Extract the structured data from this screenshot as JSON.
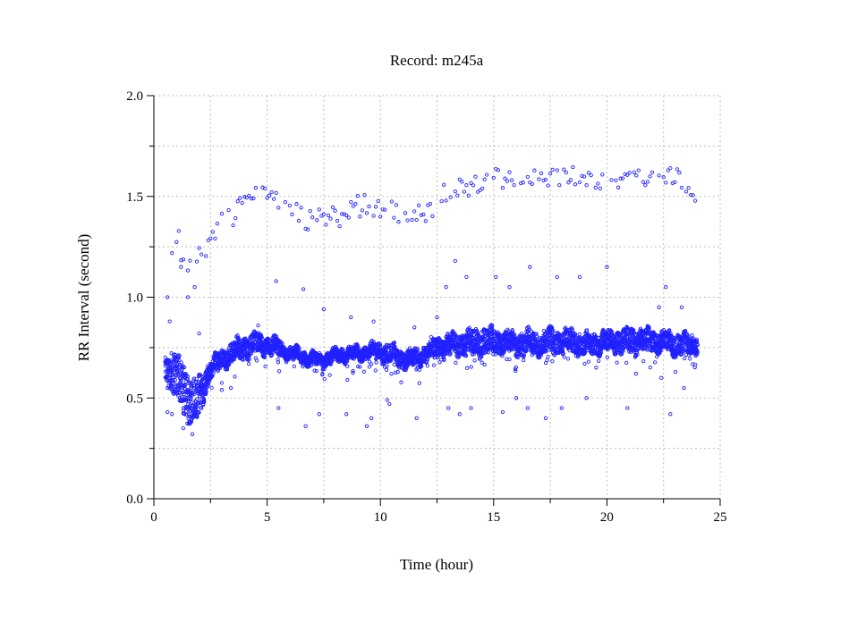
{
  "chart_data": {
    "type": "scatter",
    "title": "Record:  m245a",
    "xlabel": "Time (hour)",
    "ylabel": "RR Interval (second)",
    "xlim": [
      0,
      25
    ],
    "ylim": [
      0.0,
      2.0
    ],
    "x_ticks": [
      "0",
      "5",
      "10",
      "15",
      "20",
      "25"
    ],
    "x_tick_values": [
      0,
      5,
      10,
      15,
      20,
      25
    ],
    "x_minor_step": 2.5,
    "y_ticks": [
      "0.0",
      "0.5",
      "1.0",
      "1.5",
      "2.0"
    ],
    "y_tick_values": [
      0,
      0.5,
      1.0,
      1.5,
      2.0
    ],
    "y_minor_step": 0.25,
    "grid": true,
    "legend": "none",
    "marker": "open-circle",
    "color": "#2020ff",
    "main_band": {
      "hours": [
        0.5,
        1,
        1.5,
        2,
        2.5,
        3,
        3.5,
        4,
        4.5,
        5,
        5.5,
        6,
        6.5,
        7,
        7.5,
        8,
        8.5,
        9,
        9.5,
        10,
        10.5,
        11,
        11.5,
        12,
        12.5,
        13,
        13.5,
        14,
        14.5,
        15,
        15.5,
        16,
        16.5,
        17,
        17.5,
        18,
        18.5,
        19,
        19.5,
        20,
        20.5,
        21,
        21.5,
        22,
        22.5,
        23,
        23.5,
        24
      ],
      "rr_mean": [
        0.65,
        0.62,
        0.5,
        0.5,
        0.65,
        0.69,
        0.73,
        0.75,
        0.77,
        0.76,
        0.75,
        0.72,
        0.71,
        0.69,
        0.69,
        0.71,
        0.72,
        0.72,
        0.73,
        0.73,
        0.72,
        0.69,
        0.7,
        0.72,
        0.75,
        0.76,
        0.77,
        0.77,
        0.78,
        0.78,
        0.78,
        0.77,
        0.77,
        0.77,
        0.78,
        0.78,
        0.78,
        0.77,
        0.77,
        0.78,
        0.78,
        0.78,
        0.79,
        0.79,
        0.78,
        0.77,
        0.76,
        0.77
      ],
      "rr_spread": [
        0.06,
        0.12,
        0.12,
        0.1,
        0.04,
        0.04,
        0.05,
        0.05,
        0.05,
        0.04,
        0.04,
        0.03,
        0.03,
        0.03,
        0.03,
        0.03,
        0.03,
        0.03,
        0.03,
        0.04,
        0.04,
        0.04,
        0.04,
        0.04,
        0.05,
        0.05,
        0.05,
        0.06,
        0.06,
        0.06,
        0.05,
        0.05,
        0.06,
        0.05,
        0.06,
        0.05,
        0.06,
        0.05,
        0.05,
        0.05,
        0.05,
        0.06,
        0.05,
        0.05,
        0.05,
        0.05,
        0.05,
        0.04
      ]
    },
    "upper_band": {
      "hours": [
        0.6,
        1,
        1.5,
        2,
        2.5,
        3,
        4,
        5,
        5.5,
        6,
        7,
        8,
        9,
        10,
        11,
        12,
        12.5,
        13,
        14,
        15,
        16,
        17,
        18,
        19,
        20,
        21,
        22,
        23,
        24
      ],
      "rr_mean": [
        1.2,
        1.3,
        1.15,
        1.2,
        1.3,
        1.38,
        1.45,
        1.53,
        1.45,
        1.42,
        1.38,
        1.4,
        1.45,
        1.45,
        1.4,
        1.42,
        1.48,
        1.52,
        1.55,
        1.6,
        1.57,
        1.58,
        1.6,
        1.58,
        1.6,
        1.6,
        1.6,
        1.58,
        1.53
      ]
    },
    "outliers": {
      "x": [
        0.6,
        0.6,
        0.7,
        0.8,
        1.2,
        1.3,
        1.5,
        1.7,
        1.8,
        2.0,
        2.1,
        3.0,
        3.4,
        4.6,
        5.4,
        5.5,
        6.6,
        6.7,
        7.3,
        7.5,
        8.5,
        8.7,
        9.4,
        9.6,
        9.7,
        10.3,
        10.4,
        11.5,
        11.6,
        12.5,
        12.9,
        13.0,
        13.3,
        13.5,
        13.8,
        14.0,
        14.6,
        15.1,
        15.4,
        15.7,
        16.0,
        16.5,
        16.6,
        17.3,
        17.8,
        18.0,
        18.8,
        19.1,
        19.9,
        20.0,
        20.9,
        22.3,
        22.4,
        22.6,
        22.8,
        22.9,
        23.3,
        23.4
      ],
      "y": [
        1.0,
        0.43,
        0.88,
        0.42,
        1.15,
        0.35,
        1.0,
        0.32,
        1.05,
        0.82,
        0.45,
        0.54,
        0.55,
        0.86,
        1.08,
        0.45,
        1.04,
        0.36,
        0.42,
        0.94,
        0.42,
        0.9,
        0.36,
        0.4,
        0.88,
        0.49,
        0.47,
        0.85,
        0.4,
        0.9,
        1.05,
        0.45,
        1.18,
        0.42,
        1.1,
        0.45,
        0.84,
        1.1,
        0.43,
        1.05,
        0.5,
        0.45,
        1.15,
        0.4,
        1.1,
        0.45,
        1.1,
        0.5,
        0.8,
        1.15,
        0.45,
        0.95,
        0.6,
        1.05,
        0.42,
        0.72,
        0.95,
        0.55
      ]
    }
  }
}
